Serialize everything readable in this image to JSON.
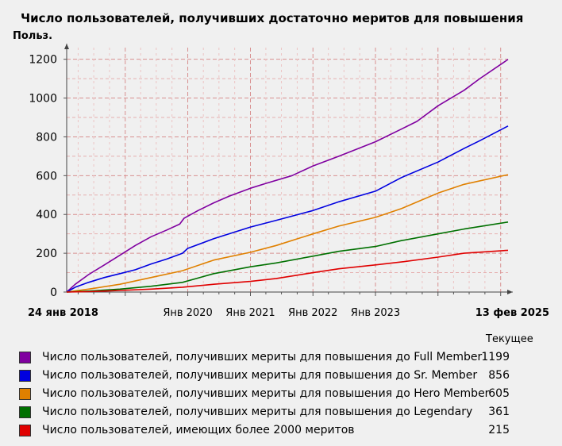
{
  "chart_data": {
    "type": "line",
    "title": "Число пользователей, получивших достаточно меритов для повышения",
    "ylabel": "Польз.",
    "xlabel": "",
    "ylim": [
      0,
      1260
    ],
    "yticks": [
      0,
      200,
      400,
      600,
      800,
      1000,
      1200
    ],
    "x_range": [
      "2018-01-24",
      "2025-02-13"
    ],
    "x_start_label": "24 янв 2018",
    "x_end_label": "13 фев 2025",
    "x_tick_labels": [
      {
        "date": "2020-01-01",
        "label": "Янв 2020"
      },
      {
        "date": "2021-01-01",
        "label": "Янв 2021"
      },
      {
        "date": "2022-01-01",
        "label": "Янв 2022"
      },
      {
        "date": "2023-01-01",
        "label": "Янв 2023"
      }
    ],
    "grid": true,
    "legend_position": "bottom",
    "legend_header": "Текущее",
    "series": [
      {
        "name": "Число пользователей, получивших мериты для повышения до Full Member",
        "color": "#8000a0",
        "current": "1199",
        "points": [
          [
            "2018-01-24",
            0
          ],
          [
            "2018-03-15",
            40
          ],
          [
            "2018-06-01",
            90
          ],
          [
            "2018-09-01",
            140
          ],
          [
            "2018-12-01",
            190
          ],
          [
            "2019-03-01",
            240
          ],
          [
            "2019-06-01",
            285
          ],
          [
            "2019-09-01",
            320
          ],
          [
            "2019-11-15",
            350
          ],
          [
            "2019-12-10",
            380
          ],
          [
            "2020-03-01",
            420
          ],
          [
            "2020-06-01",
            460
          ],
          [
            "2020-09-01",
            495
          ],
          [
            "2021-01-01",
            535
          ],
          [
            "2021-04-01",
            560
          ],
          [
            "2021-09-01",
            600
          ],
          [
            "2022-01-01",
            650
          ],
          [
            "2022-06-01",
            700
          ],
          [
            "2023-01-01",
            775
          ],
          [
            "2023-06-01",
            840
          ],
          [
            "2023-09-01",
            880
          ],
          [
            "2024-01-01",
            960
          ],
          [
            "2024-06-01",
            1040
          ],
          [
            "2024-09-01",
            1100
          ],
          [
            "2025-02-13",
            1199
          ]
        ]
      },
      {
        "name": "Число пользователей, получивших мериты для повышения до Sr. Member",
        "color": "#0000e0",
        "current": "856",
        "points": [
          [
            "2018-01-24",
            0
          ],
          [
            "2018-03-15",
            25
          ],
          [
            "2018-06-01",
            50
          ],
          [
            "2018-09-01",
            75
          ],
          [
            "2018-12-01",
            95
          ],
          [
            "2019-03-01",
            115
          ],
          [
            "2019-06-01",
            145
          ],
          [
            "2019-09-01",
            170
          ],
          [
            "2019-12-01",
            200
          ],
          [
            "2020-01-01",
            225
          ],
          [
            "2020-06-01",
            275
          ],
          [
            "2021-01-01",
            335
          ],
          [
            "2021-06-01",
            370
          ],
          [
            "2022-01-01",
            420
          ],
          [
            "2022-06-01",
            465
          ],
          [
            "2023-01-01",
            520
          ],
          [
            "2023-06-01",
            590
          ],
          [
            "2024-01-01",
            670
          ],
          [
            "2024-06-01",
            740
          ],
          [
            "2024-09-01",
            780
          ],
          [
            "2025-02-13",
            856
          ]
        ]
      },
      {
        "name": "Число пользователей, получивших мериты для повышения до Hero Member",
        "color": "#e08000",
        "current": "605",
        "points": [
          [
            "2018-01-24",
            0
          ],
          [
            "2018-06-01",
            15
          ],
          [
            "2018-12-01",
            40
          ],
          [
            "2019-06-01",
            75
          ],
          [
            "2019-12-01",
            110
          ],
          [
            "2020-06-01",
            165
          ],
          [
            "2021-01-01",
            205
          ],
          [
            "2021-06-01",
            240
          ],
          [
            "2022-01-01",
            300
          ],
          [
            "2022-06-01",
            340
          ],
          [
            "2023-01-01",
            385
          ],
          [
            "2023-06-01",
            430
          ],
          [
            "2024-01-01",
            510
          ],
          [
            "2024-06-01",
            555
          ],
          [
            "2025-02-13",
            605
          ]
        ]
      },
      {
        "name": "Число пользователей, получивших мериты для повышения до Legendary",
        "color": "#007000",
        "current": "361",
        "points": [
          [
            "2018-01-24",
            0
          ],
          [
            "2018-06-01",
            5
          ],
          [
            "2018-12-01",
            15
          ],
          [
            "2019-06-01",
            30
          ],
          [
            "2019-12-01",
            50
          ],
          [
            "2020-06-01",
            95
          ],
          [
            "2021-01-01",
            130
          ],
          [
            "2021-06-01",
            150
          ],
          [
            "2022-01-01",
            185
          ],
          [
            "2022-06-01",
            210
          ],
          [
            "2023-01-01",
            235
          ],
          [
            "2023-06-01",
            265
          ],
          [
            "2024-01-01",
            300
          ],
          [
            "2024-06-01",
            325
          ],
          [
            "2025-02-13",
            361
          ]
        ]
      },
      {
        "name": "Число пользователей, имеющих более 2000 меритов",
        "color": "#e00000",
        "current": "215",
        "points": [
          [
            "2018-01-24",
            0
          ],
          [
            "2018-06-01",
            2
          ],
          [
            "2018-12-01",
            8
          ],
          [
            "2019-06-01",
            15
          ],
          [
            "2019-12-01",
            25
          ],
          [
            "2020-06-01",
            40
          ],
          [
            "2021-01-01",
            55
          ],
          [
            "2021-06-01",
            70
          ],
          [
            "2022-01-01",
            100
          ],
          [
            "2022-06-01",
            120
          ],
          [
            "2023-01-01",
            140
          ],
          [
            "2023-06-01",
            155
          ],
          [
            "2024-01-01",
            180
          ],
          [
            "2024-06-01",
            200
          ],
          [
            "2025-02-13",
            215
          ]
        ]
      }
    ]
  }
}
